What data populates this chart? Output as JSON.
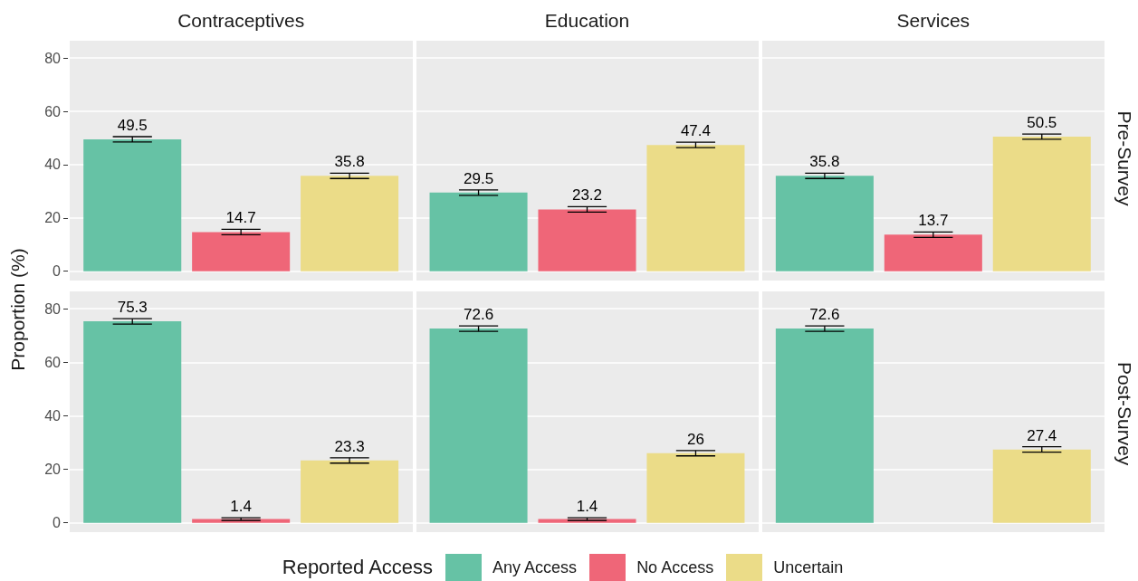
{
  "chart_data": [
    {
      "type": "bar",
      "categories": [
        "Contraceptives",
        "Education",
        "Services"
      ],
      "y2label": "Pre-Survey",
      "ylabel": "Proportion (%)",
      "series": [
        {
          "color": "#66c2a5",
          "values": [
            49.5,
            29.5,
            35.8
          ],
          "errors": [
            1,
            1,
            1
          ]
        },
        {
          "color": "#ef6678",
          "values": [
            14.7,
            23.2,
            13.7
          ],
          "errors": [
            1,
            1,
            1
          ]
        },
        {
          "color": "#ebdc88",
          "values": [
            35.8,
            47.4,
            50.5
          ],
          "errors": [
            1,
            1,
            1
          ]
        }
      ],
      "ylim": [
        -3.5,
        86.5
      ],
      "yticks": [
        0,
        20,
        40,
        60,
        80
      ],
      "grid": "y",
      "data_labels": true
    },
    {
      "type": "bar",
      "categories": [
        null,
        null,
        null
      ],
      "y2label": "Post-Survey",
      "legend": "bottom",
      "legend_title": "Reported Access",
      "series": [
        {
          "name": "Any Access",
          "color": "#66c2a5",
          "values": [
            75.3,
            72.6,
            72.6
          ],
          "errors": [
            1,
            1,
            1
          ]
        },
        {
          "name": "No Access",
          "color": "#ef6678",
          "values": [
            1.4,
            1.4,
            null
          ],
          "errors": [
            0.5,
            0.5,
            null
          ]
        },
        {
          "name": "Uncertain",
          "color": "#ebdc88",
          "values": [
            23.3,
            26,
            27.4
          ],
          "errors": [
            1,
            1,
            1
          ]
        }
      ],
      "ylim": [
        -3.5,
        86.5
      ],
      "yticks": [
        0,
        20,
        40,
        60,
        80
      ],
      "grid": "y",
      "data_labels": true,
      "tick_labels": "y"
    }
  ]
}
